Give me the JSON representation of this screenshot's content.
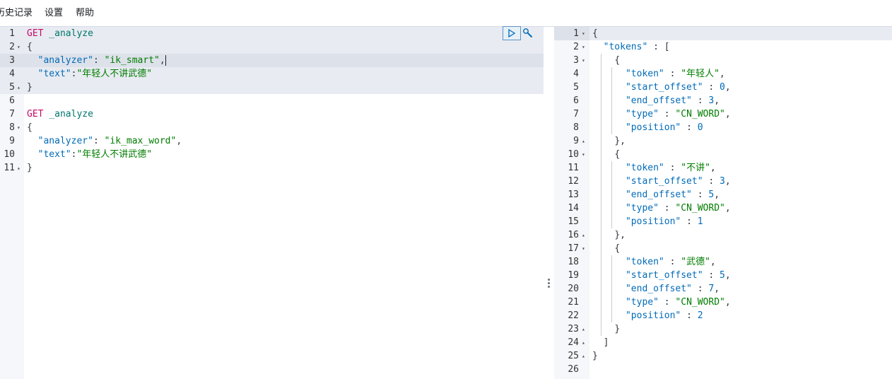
{
  "menu": {
    "history": "历史记录",
    "settings": "设置",
    "help": "帮助"
  },
  "request": {
    "lines": [
      {
        "n": "1",
        "fold": ""
      },
      {
        "n": "2",
        "fold": "▾"
      },
      {
        "n": "3",
        "fold": ""
      },
      {
        "n": "4",
        "fold": ""
      },
      {
        "n": "5",
        "fold": "▴"
      },
      {
        "n": "6",
        "fold": ""
      },
      {
        "n": "7",
        "fold": ""
      },
      {
        "n": "8",
        "fold": "▾"
      },
      {
        "n": "9",
        "fold": ""
      },
      {
        "n": "10",
        "fold": ""
      },
      {
        "n": "11",
        "fold": "▴"
      }
    ],
    "method": "GET",
    "endpoint": "_analyze",
    "open_brace": "{",
    "close_brace": "}",
    "key_analyzer": "\"analyzer\"",
    "key_text": "\"text\"",
    "colon_space": ": ",
    "colon": ":",
    "comma": ",",
    "analyzer_1": "\"ik_smart\"",
    "analyzer_2": "\"ik_max_word\"",
    "text_value": "\"年轻人不讲武德\""
  },
  "actions": {
    "run_icon": "play-icon",
    "settings_icon": "wrench-icon"
  },
  "response": {
    "lines": [
      {
        "n": "1",
        "fold": "▾"
      },
      {
        "n": "2",
        "fold": "▾"
      },
      {
        "n": "3",
        "fold": "▾"
      },
      {
        "n": "4",
        "fold": ""
      },
      {
        "n": "5",
        "fold": ""
      },
      {
        "n": "6",
        "fold": ""
      },
      {
        "n": "7",
        "fold": ""
      },
      {
        "n": "8",
        "fold": ""
      },
      {
        "n": "9",
        "fold": "▴"
      },
      {
        "n": "10",
        "fold": "▾"
      },
      {
        "n": "11",
        "fold": ""
      },
      {
        "n": "12",
        "fold": ""
      },
      {
        "n": "13",
        "fold": ""
      },
      {
        "n": "14",
        "fold": ""
      },
      {
        "n": "15",
        "fold": ""
      },
      {
        "n": "16",
        "fold": "▴"
      },
      {
        "n": "17",
        "fold": "▾"
      },
      {
        "n": "18",
        "fold": ""
      },
      {
        "n": "19",
        "fold": ""
      },
      {
        "n": "20",
        "fold": ""
      },
      {
        "n": "21",
        "fold": ""
      },
      {
        "n": "22",
        "fold": ""
      },
      {
        "n": "23",
        "fold": "▴"
      },
      {
        "n": "24",
        "fold": "▴"
      },
      {
        "n": "25",
        "fold": "▴"
      },
      {
        "n": "26",
        "fold": ""
      }
    ],
    "tokens_key": "\"tokens\"",
    "tokens": [
      {
        "token": "\"年轻人\"",
        "start_offset": "0",
        "end_offset": "3",
        "type": "\"CN_WORD\"",
        "position": "0"
      },
      {
        "token": "\"不讲\"",
        "start_offset": "3",
        "end_offset": "5",
        "type": "\"CN_WORD\"",
        "position": "1"
      },
      {
        "token": "\"武德\"",
        "start_offset": "5",
        "end_offset": "7",
        "type": "\"CN_WORD\"",
        "position": "2"
      }
    ],
    "k_token": "\"token\"",
    "k_start": "\"start_offset\"",
    "k_end": "\"end_offset\"",
    "k_type": "\"type\"",
    "k_position": "\"position\"",
    "sep": " : ",
    "comma": ",",
    "open_brace": "{",
    "close_brace": "}",
    "close_obj_comma": "},",
    "open_bracket": "[",
    "close_bracket": "]"
  }
}
